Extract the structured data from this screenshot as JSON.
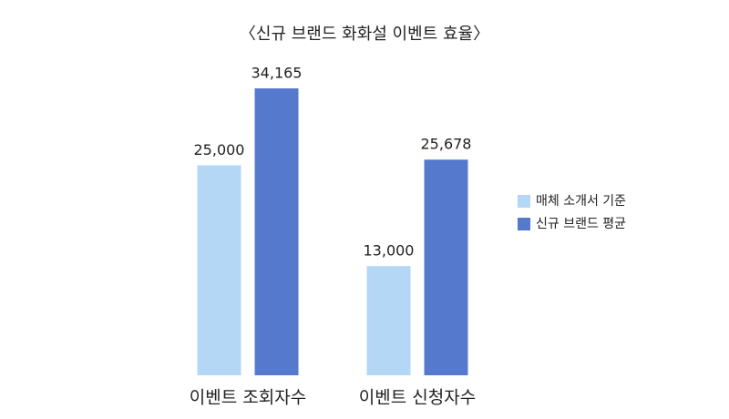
{
  "chart_data": {
    "type": "bar",
    "title": "〈신규 브랜드 화화설 이벤트 효율〉",
    "categories": [
      "이벤트 조회자수",
      "이벤트 신청자수"
    ],
    "series": [
      {
        "name": "매체 소개서 기준",
        "color": "#b4d7f5",
        "values": [
          25000,
          13000
        ],
        "value_labels": [
          "25,000",
          "13,000"
        ]
      },
      {
        "name": "신규 브랜드 평균",
        "color": "#5579cc",
        "values": [
          34165,
          25678
        ],
        "value_labels": [
          "34,165",
          "25,678"
        ]
      }
    ],
    "legend": "right"
  }
}
